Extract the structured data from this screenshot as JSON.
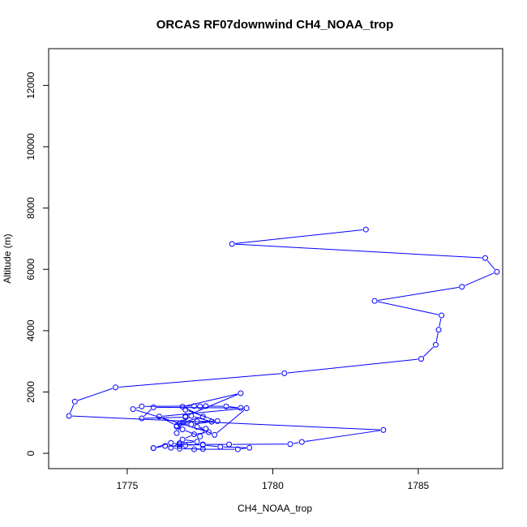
{
  "chart_data": {
    "type": "line",
    "title": "ORCAS RF07downwind CH4_NOAA_trop",
    "xlabel": "CH4_NOAA_trop",
    "ylabel": "Altitude (m)",
    "xlim": [
      1772.3,
      1787.9
    ],
    "ylim": [
      -500,
      13200
    ],
    "xticks": [
      1775,
      1780,
      1785
    ],
    "yticks": [
      0,
      2000,
      4000,
      6000,
      8000,
      10000,
      12000
    ],
    "grid": false,
    "series_color": "#0000ff",
    "series": [
      {
        "x": [
          1783.2,
          1778.6,
          1787.3,
          1787.7,
          1786.5,
          1783.5,
          1785.8,
          1785.7,
          1785.6,
          1785.1,
          1780.4,
          1774.6,
          1773.2,
          1773.0,
          1783.8,
          1781.0,
          1780.6,
          1778.5,
          1777.6,
          1777.0,
          1776.5,
          1775.9,
          1775.9,
          1776.3,
          1776.8,
          1776.8,
          1777.6,
          1778.2,
          1779.2,
          1778.8,
          1777.3,
          1777.6,
          1776.8,
          1776.5,
          1776.8,
          1777.4,
          1776.9,
          1777.3,
          1777.8,
          1775.2,
          1775.5,
          1777.3,
          1777.5,
          1777.7,
          1778.4,
          1778.9,
          1775.9,
          1775.5,
          1777.0,
          1777.0,
          1778.1,
          1777.4,
          1776.8,
          1777.2,
          1777.9,
          1777.2,
          1776.7,
          1776.9,
          1777.5,
          1777.7,
          1777.4,
          1778.0,
          1779.1,
          1776.1,
          1776.7,
          1776.7,
          1776.9,
          1777.6,
          1776.9,
          1778.9,
          1777.0
        ],
        "y": [
          7300,
          6830,
          6370,
          5920,
          5430,
          4970,
          4500,
          4030,
          3540,
          3080,
          2610,
          2150,
          1690,
          1220,
          760,
          370,
          300,
          290,
          290,
          260,
          340,
          170,
          170,
          240,
          230,
          290,
          270,
          210,
          180,
          130,
          130,
          140,
          150,
          180,
          330,
          380,
          450,
          620,
          690,
          1440,
          1530,
          1540,
          1530,
          1540,
          1530,
          1480,
          1500,
          1140,
          1180,
          1420,
          1050,
          1040,
          970,
          940,
          1030,
          1220,
          870,
          780,
          550,
          800,
          860,
          600,
          1470,
          1200,
          900,
          660,
          1000,
          1200,
          1520,
          1960,
          1210
        ]
      }
    ]
  }
}
